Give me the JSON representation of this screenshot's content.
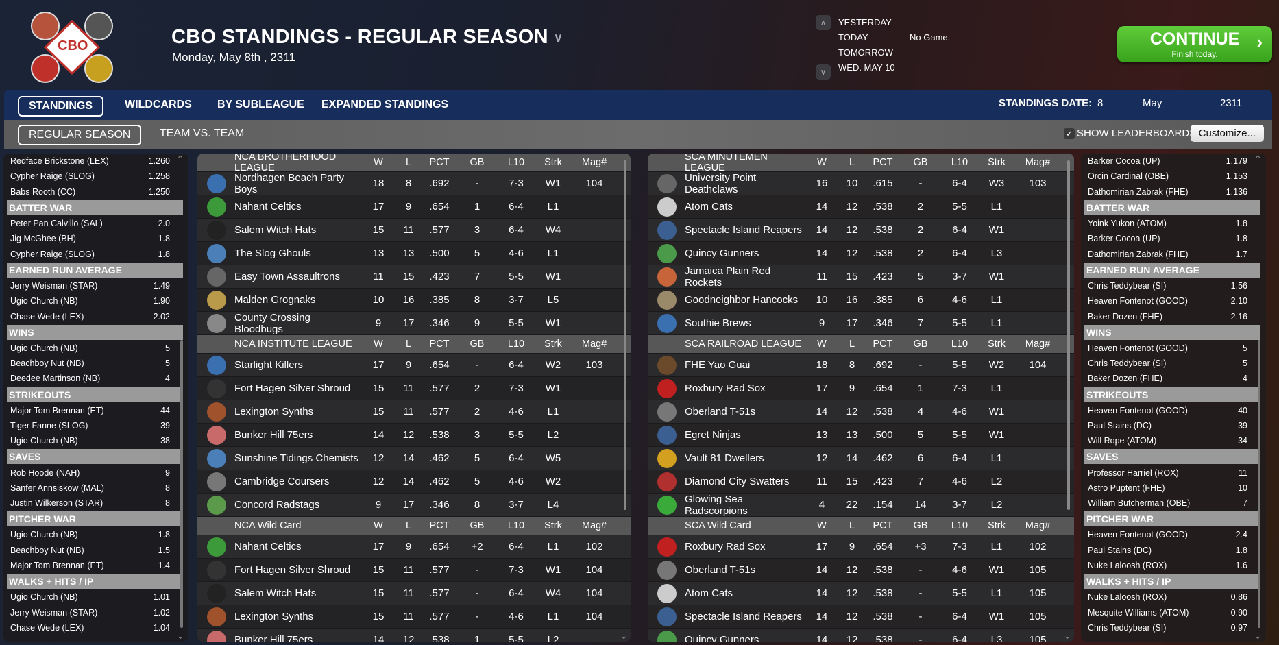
{
  "header": {
    "logo_text": "CBO",
    "title": "CBO STANDINGS - REGULAR SEASON",
    "date": "Monday, May 8th , 2311",
    "days": [
      "YESTERDAY",
      "TODAY",
      "TOMORROW",
      "WED. MAY 10"
    ],
    "today_note": "No Game.",
    "continue_label": "CONTINUE",
    "continue_sub": "Finish today."
  },
  "nav": {
    "tabs": [
      "STANDINGS",
      "WILDCARDS",
      "BY SUBLEAGUE",
      "EXPANDED STANDINGS"
    ],
    "active": 0,
    "date_label": "STANDINGS DATE:",
    "date_day": "8",
    "date_month": "May",
    "date_year": "2311"
  },
  "subnav": {
    "tabs": [
      "REGULAR SEASON",
      "TEAM VS. TEAM"
    ],
    "active": 0,
    "show_leaderboards": "SHOW LEADERBOARDS",
    "show_leaderboards_checked": true,
    "customize": "Customize..."
  },
  "columns": [
    "W",
    "L",
    "PCT",
    "GB",
    "L10",
    "Strk",
    "Mag#"
  ],
  "left_leaders": [
    {
      "title": "",
      "rows": [
        [
          "Redface Brickstone (LEX)",
          "1.260"
        ],
        [
          "Cypher Raige (SLOG)",
          "1.258"
        ],
        [
          "Babs Rooth (CC)",
          "1.250"
        ]
      ]
    },
    {
      "title": "BATTER WAR",
      "rows": [
        [
          "Peter Pan Calvillo (SAL)",
          "2.0"
        ],
        [
          "Jig McGhee (BH)",
          "1.8"
        ],
        [
          "Cypher Raige (SLOG)",
          "1.8"
        ]
      ]
    },
    {
      "title": "EARNED RUN AVERAGE",
      "rows": [
        [
          "Jerry Weisman (STAR)",
          "1.49"
        ],
        [
          "Ugio Church (NB)",
          "1.90"
        ],
        [
          "Chase Wede (LEX)",
          "2.02"
        ]
      ]
    },
    {
      "title": "WINS",
      "rows": [
        [
          "Ugio Church (NB)",
          "5"
        ],
        [
          "Beachboy Nut (NB)",
          "5"
        ],
        [
          "Deedee Martinson (NB)",
          "4"
        ]
      ]
    },
    {
      "title": "STRIKEOUTS",
      "rows": [
        [
          "Major Tom Brennan (ET)",
          "44"
        ],
        [
          "Tiger Fanne (SLOG)",
          "39"
        ],
        [
          "Ugio Church (NB)",
          "38"
        ]
      ]
    },
    {
      "title": "SAVES",
      "rows": [
        [
          "Rob Hoode (NAH)",
          "9"
        ],
        [
          "Sanfer Annsiskow (MAL)",
          "8"
        ],
        [
          "Justin Wilkerson (STAR)",
          "8"
        ]
      ]
    },
    {
      "title": "PITCHER WAR",
      "rows": [
        [
          "Ugio Church (NB)",
          "1.8"
        ],
        [
          "Beachboy Nut (NB)",
          "1.5"
        ],
        [
          "Major Tom Brennan (ET)",
          "1.4"
        ]
      ]
    },
    {
      "title": "WALKS + HITS / IP",
      "rows": [
        [
          "Ugio Church (NB)",
          "1.01"
        ],
        [
          "Jerry Weisman (STAR)",
          "1.02"
        ],
        [
          "Chase Wede (LEX)",
          "1.04"
        ]
      ]
    }
  ],
  "right_leaders": [
    {
      "title": "",
      "rows": [
        [
          "Barker Cocoa (UP)",
          "1.179"
        ],
        [
          "Orcin Cardinal (OBE)",
          "1.153"
        ],
        [
          "Dathomirian Zabrak (FHE)",
          "1.136"
        ]
      ]
    },
    {
      "title": "BATTER WAR",
      "rows": [
        [
          "Yoink Yukon (ATOM)",
          "1.8"
        ],
        [
          "Barker Cocoa (UP)",
          "1.8"
        ],
        [
          "Dathomirian Zabrak (FHE)",
          "1.7"
        ]
      ]
    },
    {
      "title": "EARNED RUN AVERAGE",
      "rows": [
        [
          "Chris Teddybear (SI)",
          "1.56"
        ],
        [
          "Heaven Fontenot (GOOD)",
          "2.10"
        ],
        [
          "Baker Dozen (FHE)",
          "2.16"
        ]
      ]
    },
    {
      "title": "WINS",
      "rows": [
        [
          "Heaven Fontenot (GOOD)",
          "5"
        ],
        [
          "Chris Teddybear (SI)",
          "5"
        ],
        [
          "Baker Dozen (FHE)",
          "4"
        ]
      ]
    },
    {
      "title": "STRIKEOUTS",
      "rows": [
        [
          "Heaven Fontenot (GOOD)",
          "40"
        ],
        [
          "Paul Stains (DC)",
          "39"
        ],
        [
          "Will Rope (ATOM)",
          "34"
        ]
      ]
    },
    {
      "title": "SAVES",
      "rows": [
        [
          "Professor Harriel (ROX)",
          "11"
        ],
        [
          "Astro Puptent (FHE)",
          "10"
        ],
        [
          "William Butcherman (OBE)",
          "7"
        ]
      ]
    },
    {
      "title": "PITCHER WAR",
      "rows": [
        [
          "Heaven Fontenot (GOOD)",
          "2.4"
        ],
        [
          "Paul Stains (DC)",
          "1.8"
        ],
        [
          "Nuke Laloosh (ROX)",
          "1.6"
        ]
      ]
    },
    {
      "title": "WALKS + HITS / IP",
      "rows": [
        [
          "Nuke Laloosh (ROX)",
          "0.86"
        ],
        [
          "Mesquite Williams (ATOM)",
          "0.90"
        ],
        [
          "Chris Teddybear (SI)",
          "0.97"
        ]
      ]
    }
  ],
  "left_standings": [
    {
      "title": "NCA BROTHERHOOD LEAGUE",
      "rows": [
        [
          "Nordhagen Beach Party Boys",
          "18",
          "8",
          ".692",
          "-",
          "7-3",
          "W1",
          "104",
          "#3a6fb0"
        ],
        [
          "Nahant Celtics",
          "17",
          "9",
          ".654",
          "1",
          "6-4",
          "L1",
          "",
          "#3c9a3a"
        ],
        [
          "Salem Witch Hats",
          "15",
          "11",
          ".577",
          "3",
          "6-4",
          "W4",
          "",
          "#222"
        ],
        [
          "The Slog Ghouls",
          "13",
          "13",
          ".500",
          "5",
          "4-6",
          "L1",
          "",
          "#4a7fb8"
        ],
        [
          "Easy Town Assaultrons",
          "11",
          "15",
          ".423",
          "7",
          "5-5",
          "W1",
          "",
          "#666"
        ],
        [
          "Malden Grognaks",
          "10",
          "16",
          ".385",
          "8",
          "3-7",
          "L5",
          "",
          "#b89a4a"
        ],
        [
          "County Crossing Bloodbugs",
          "9",
          "17",
          ".346",
          "9",
          "5-5",
          "W1",
          "",
          "#888"
        ]
      ]
    },
    {
      "title": "NCA INSTITUTE LEAGUE",
      "rows": [
        [
          "Starlight Killers",
          "17",
          "9",
          ".654",
          "-",
          "6-4",
          "W2",
          "103",
          "#3a6fb0"
        ],
        [
          "Fort Hagen Silver Shroud",
          "15",
          "11",
          ".577",
          "2",
          "7-3",
          "W1",
          "",
          "#333"
        ],
        [
          "Lexington Synths",
          "15",
          "11",
          ".577",
          "2",
          "4-6",
          "L1",
          "",
          "#a0522d"
        ],
        [
          "Bunker Hill 75ers",
          "14",
          "12",
          ".538",
          "3",
          "5-5",
          "L2",
          "",
          "#c96a6a"
        ],
        [
          "Sunshine Tidings Chemists",
          "12",
          "14",
          ".462",
          "5",
          "6-4",
          "W5",
          "",
          "#4a7fb8"
        ],
        [
          "Cambridge Coursers",
          "12",
          "14",
          ".462",
          "5",
          "4-6",
          "W2",
          "",
          "#777"
        ],
        [
          "Concord Radstags",
          "9",
          "17",
          ".346",
          "8",
          "3-7",
          "L4",
          "",
          "#5a9a4a"
        ]
      ]
    },
    {
      "title": "NCA  Wild Card",
      "rows": [
        [
          "Nahant Celtics",
          "17",
          "9",
          ".654",
          "+2",
          "6-4",
          "L1",
          "102",
          "#3c9a3a"
        ],
        [
          "Fort Hagen Silver Shroud",
          "15",
          "11",
          ".577",
          "-",
          "7-3",
          "W1",
          "104",
          "#333"
        ],
        [
          "Salem Witch Hats",
          "15",
          "11",
          ".577",
          "-",
          "6-4",
          "W4",
          "104",
          "#222"
        ],
        [
          "Lexington Synths",
          "15",
          "11",
          ".577",
          "-",
          "4-6",
          "L1",
          "104",
          "#a0522d"
        ],
        [
          "Bunker Hill 75ers",
          "14",
          "12",
          ".538",
          "1",
          "5-5",
          "L2",
          "",
          "#c96a6a"
        ]
      ]
    }
  ],
  "right_standings": [
    {
      "title": "SCA MINUTEMEN LEAGUE",
      "rows": [
        [
          "University Point Deathclaws",
          "16",
          "10",
          ".615",
          "-",
          "6-4",
          "W3",
          "103",
          "#666"
        ],
        [
          "Atom Cats",
          "14",
          "12",
          ".538",
          "2",
          "5-5",
          "L1",
          "",
          "#ccc"
        ],
        [
          "Spectacle Island Reapers",
          "14",
          "12",
          ".538",
          "2",
          "6-4",
          "W1",
          "",
          "#3a5f90"
        ],
        [
          "Quincy Gunners",
          "14",
          "12",
          ".538",
          "2",
          "6-4",
          "L3",
          "",
          "#4a9a4a"
        ],
        [
          "Jamaica Plain Red Rockets",
          "11",
          "15",
          ".423",
          "5",
          "3-7",
          "W1",
          "",
          "#c8643a"
        ],
        [
          "Goodneighbor Hancocks",
          "10",
          "16",
          ".385",
          "6",
          "4-6",
          "L1",
          "",
          "#9a8a6a"
        ],
        [
          "Southie Brews",
          "9",
          "17",
          ".346",
          "7",
          "5-5",
          "L1",
          "",
          "#3a6fb0"
        ]
      ]
    },
    {
      "title": "SCA RAILROAD LEAGUE",
      "rows": [
        [
          "FHE Yao Guai",
          "18",
          "8",
          ".692",
          "-",
          "5-5",
          "W2",
          "104",
          "#6a4a2a"
        ],
        [
          "Roxbury Rad Sox",
          "17",
          "9",
          ".654",
          "1",
          "7-3",
          "L1",
          "",
          "#c02020"
        ],
        [
          "Oberland T-51s",
          "14",
          "12",
          ".538",
          "4",
          "4-6",
          "W1",
          "",
          "#777"
        ],
        [
          "Egret Ninjas",
          "13",
          "13",
          ".500",
          "5",
          "5-5",
          "W1",
          "",
          "#3a5f90"
        ],
        [
          "Vault 81 Dwellers",
          "12",
          "14",
          ".462",
          "6",
          "6-4",
          "L1",
          "",
          "#d4a020"
        ],
        [
          "Diamond City Swatters",
          "11",
          "15",
          ".423",
          "7",
          "4-6",
          "L2",
          "",
          "#b03030"
        ],
        [
          "Glowing Sea Radscorpions",
          "4",
          "22",
          ".154",
          "14",
          "3-7",
          "L2",
          "",
          "#3aaa3a"
        ]
      ]
    },
    {
      "title": "SCA  Wild Card",
      "rows": [
        [
          "Roxbury Rad Sox",
          "17",
          "9",
          ".654",
          "+3",
          "7-3",
          "L1",
          "102",
          "#c02020"
        ],
        [
          "Oberland T-51s",
          "14",
          "12",
          ".538",
          "-",
          "4-6",
          "W1",
          "105",
          "#777"
        ],
        [
          "Atom Cats",
          "14",
          "12",
          ".538",
          "-",
          "5-5",
          "L1",
          "105",
          "#ccc"
        ],
        [
          "Spectacle Island Reapers",
          "14",
          "12",
          ".538",
          "-",
          "6-4",
          "W1",
          "105",
          "#3a5f90"
        ],
        [
          "Quincy Gunners",
          "14",
          "12",
          ".538",
          "-",
          "6-4",
          "L3",
          "105",
          "#4a9a4a"
        ]
      ]
    }
  ]
}
